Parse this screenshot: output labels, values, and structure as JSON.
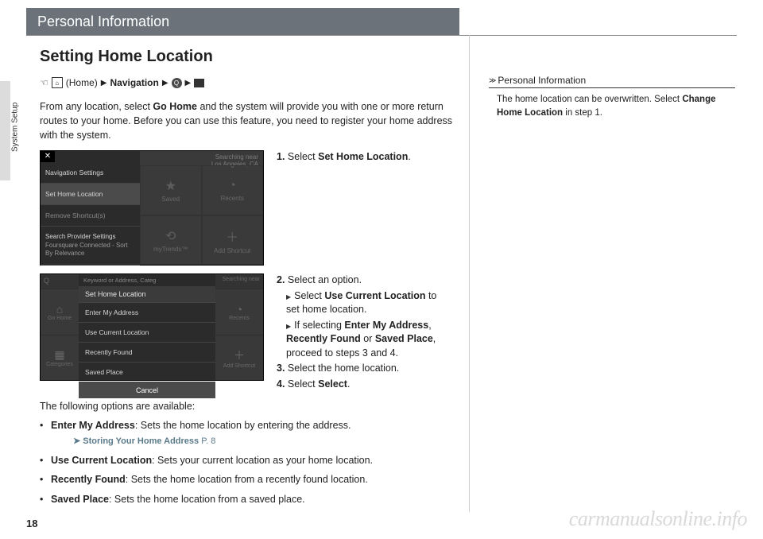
{
  "page_number": "18",
  "watermark": "carmanualsonline.info",
  "header_title": "Personal Information",
  "side_tab": "System Setup",
  "section_title": "Setting Home Location",
  "path": {
    "home_label": "(Home)",
    "nav_label": "Navigation"
  },
  "intro": "From any location, select Go Home and the system will provide you with one or more return routes to your home. Before you can use this feature, you need to register your home address with the system.",
  "screenshot1": {
    "menu": [
      "Navigation Settings",
      "Set Home Location",
      "Remove Shortcut(s)",
      "Search Provider Settings"
    ],
    "menu_sub": "Foursquare Connected - Sort By Relevance",
    "search_near": "Searching near",
    "search_city": "Los Angeles, CA",
    "grid": [
      {
        "icon": "★",
        "label": "Saved"
      },
      {
        "icon": "◔",
        "label": "Recents"
      },
      {
        "icon": "⟲",
        "label": "myTrends™"
      },
      {
        "icon": "＋",
        "label": "Add Shortcut"
      }
    ]
  },
  "screenshot2": {
    "left": [
      {
        "icon": "⌂",
        "label": "Go Home"
      },
      {
        "icon": "▦",
        "label": "Categories"
      }
    ],
    "title": "Set Home Location",
    "options": [
      "Enter My Address",
      "Use Current Location",
      "Recently Found",
      "Saved Place"
    ],
    "cancel": "Cancel",
    "right_bar": "Searching near",
    "right": [
      {
        "icon": "◔",
        "label": "Recents"
      },
      {
        "icon": "＋",
        "label": "Add Shortcut"
      }
    ],
    "topq": "Keyword or Address, Categ"
  },
  "steps": {
    "s1": "Select Set Home Location.",
    "s2": "Select an option.",
    "s2a": "Select Use Current Location to set home location.",
    "s2b": "If selecting Enter My Address, Recently Found or Saved Place, proceed to steps 3 and 4.",
    "s3": "Select the home location.",
    "s4": "Select Select."
  },
  "options_intro": "The following options are available:",
  "options": [
    {
      "t": "Enter My Address",
      "d": ": Sets the home location by entering the address.",
      "xref": "Storing Your Home Address",
      "page": "P. 8"
    },
    {
      "t": "Use Current Location",
      "d": ": Sets your current location as your home location."
    },
    {
      "t": "Recently Found",
      "d": ": Sets the home location from a recently found location."
    },
    {
      "t": "Saved Place",
      "d": ": Sets the home location from a saved place."
    }
  ],
  "sidebar": {
    "title": "Personal Information",
    "body1": "The home location can be overwritten. Select",
    "body2": "Change Home Location",
    "body3": " in step 1."
  }
}
